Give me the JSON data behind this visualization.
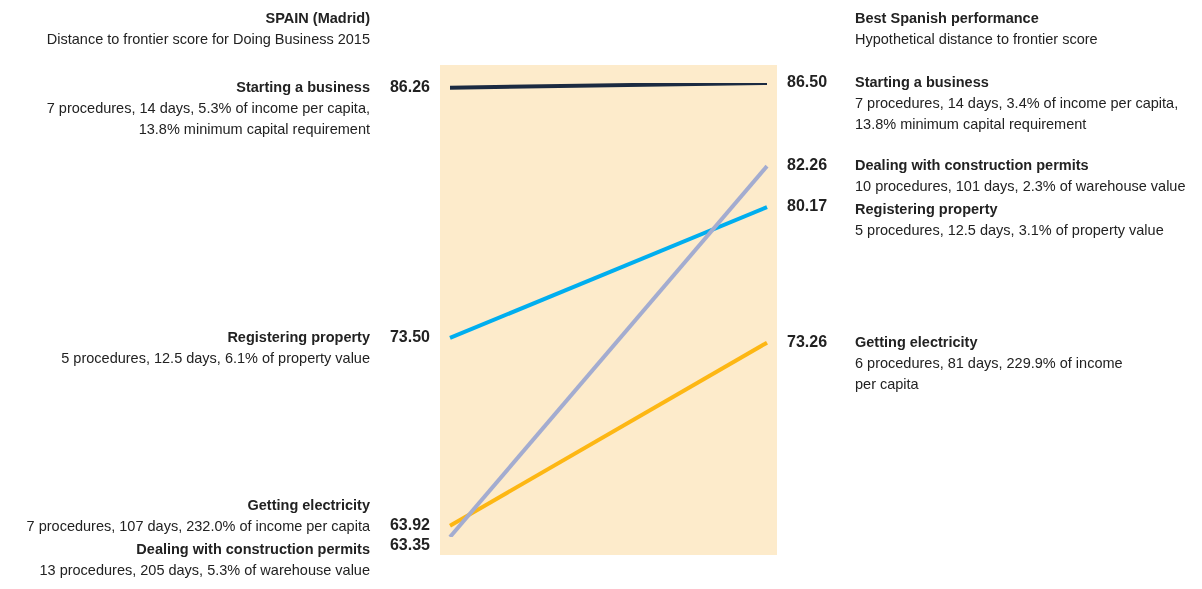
{
  "chart_data": {
    "type": "line",
    "categories": [
      null,
      null
    ],
    "series": [
      {
        "name": "Starting a business",
        "color": "#1b2a41",
        "values": [
          86.26,
          86.5
        ],
        "value_labels": [
          "86.26",
          "86.50"
        ]
      },
      {
        "name": "Registering property",
        "color": "#00aeef",
        "values": [
          73.5,
          80.17
        ],
        "value_labels": [
          "73.50",
          "80.17"
        ]
      },
      {
        "name": "Getting electricity",
        "color": "#fdb714",
        "values": [
          63.92,
          73.26
        ],
        "value_labels": [
          "63.92",
          "73.26"
        ]
      },
      {
        "name": "Dealing with construction permits",
        "color": "#a3acd0",
        "values": [
          63.35,
          82.26
        ],
        "value_labels": [
          "63.35",
          "82.26"
        ]
      }
    ],
    "annotations": [
      "SPAIN (Madrid)",
      "Distance to frontier score for Doing Business 2015",
      "Best Spanish performance",
      "Hypothetical distance to frontier score",
      "7 procedures, 14 days, 5.3% of income per capita,\n13.8% minimum capital requirement",
      "5 procedures, 12.5 days, 6.1% of property value",
      "7 procedures, 107 days, 232.0% of income per capita",
      "13 procedures, 205 days, 5.3% of warehouse value",
      "7 procedures, 14 days, 3.4% of income per capita,\n13.8% minimum capital requirement",
      "5 procedures, 12.5 days, 3.1% of property value",
      "6 procedures, 81 days, 229.9% of income\nper capita",
      "10 procedures, 101 days, 2.3% of warehouse value"
    ]
  }
}
